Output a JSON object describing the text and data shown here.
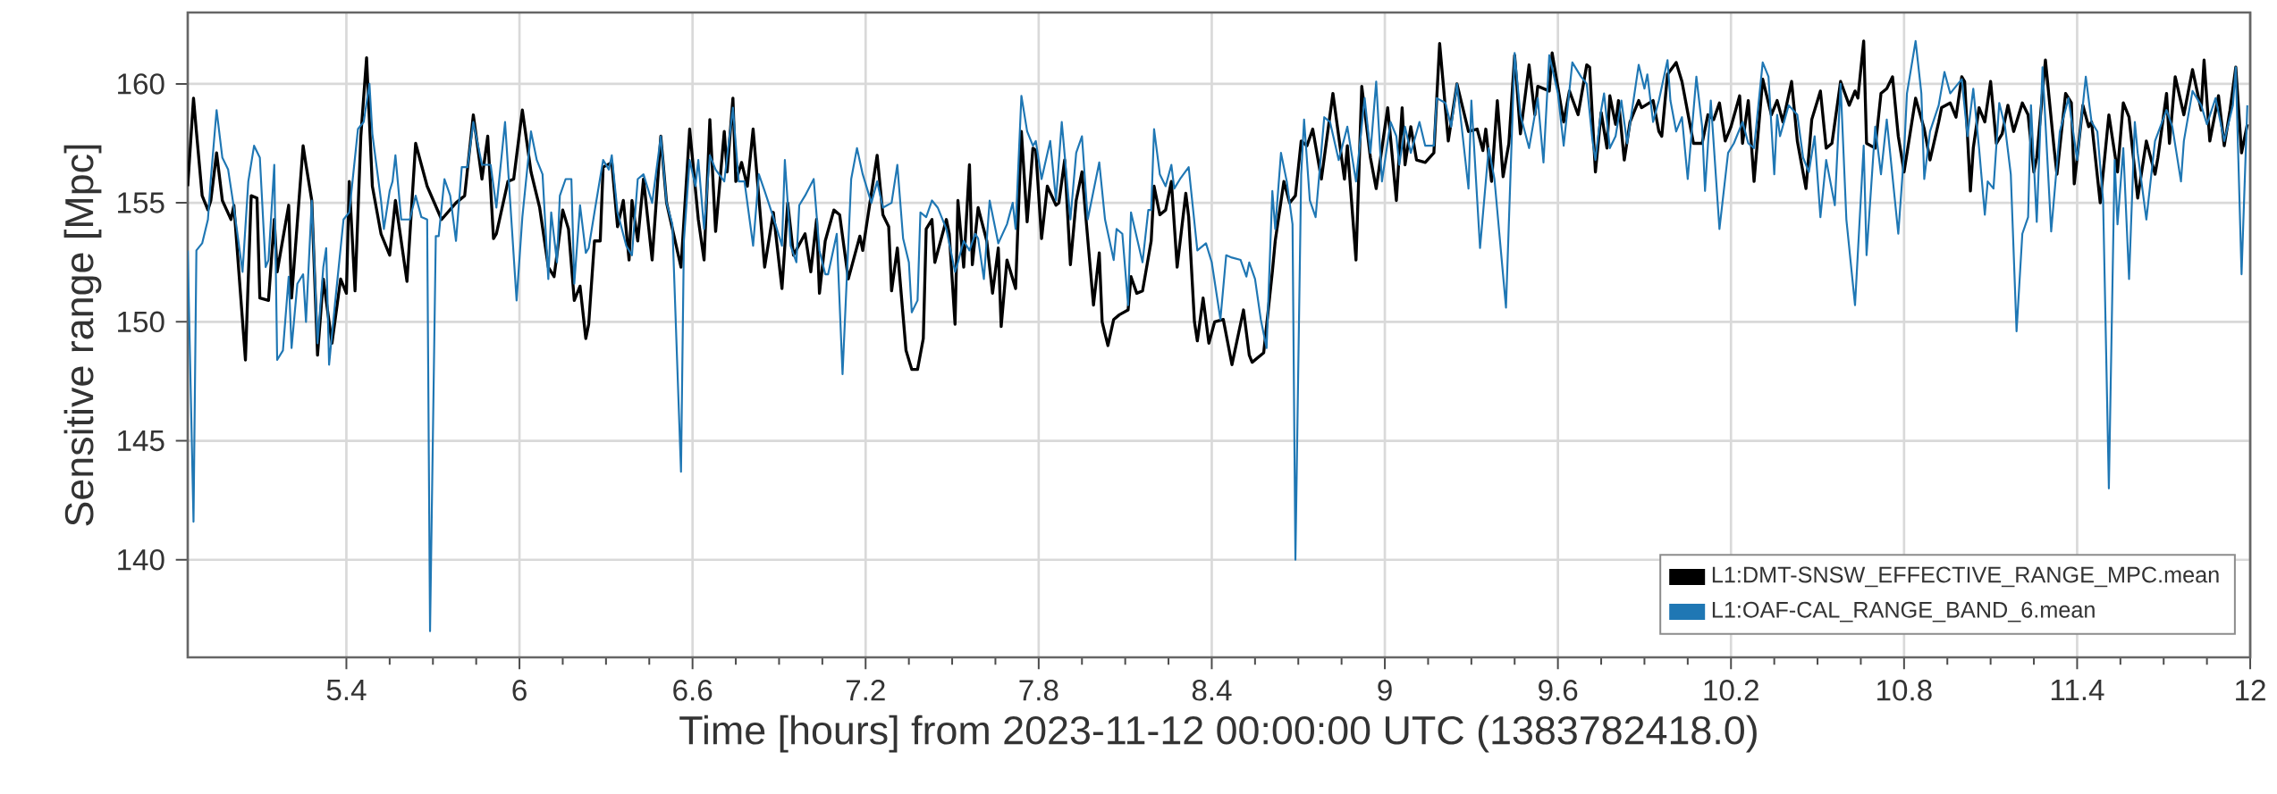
{
  "chart_data": {
    "type": "line",
    "xlabel": "Time [hours] from 2023-11-12 00:00:00 UTC (1383782418.0)",
    "ylabel": "Sensitive range [Mpc]",
    "xlim": [
      4.85,
      12.0
    ],
    "ylim": [
      135.9,
      163.0
    ],
    "xticks": [
      5.4,
      6,
      6.6,
      7.2,
      7.8,
      8.4,
      9,
      9.6,
      10.2,
      10.8,
      11.4,
      12
    ],
    "yticks": [
      140,
      145,
      150,
      155,
      160
    ],
    "grid": true,
    "legend": "bottom right",
    "series": [
      {
        "name": "L1:DMT-SNSW_EFFECTIVE_RANGE_MPC.mean",
        "color": "#000000",
        "x": [
          4.85,
          4.87,
          4.88,
          4.9,
          4.92,
          4.93,
          4.95,
          4.97,
          5.0,
          5.01,
          5.05,
          5.07,
          5.09,
          5.1,
          5.13,
          5.15,
          5.16,
          5.2,
          5.21,
          5.25,
          5.26,
          5.28,
          5.3,
          5.32,
          5.35,
          5.38,
          5.4,
          5.41,
          5.43,
          5.45,
          5.47,
          5.49,
          5.52,
          5.55,
          5.57,
          5.61,
          5.64,
          5.68,
          5.73,
          5.78,
          5.81,
          5.84,
          5.87,
          5.89,
          5.91,
          5.92,
          5.96,
          5.98,
          6.01,
          6.04,
          6.07,
          6.1,
          6.12,
          6.15,
          6.17,
          6.19,
          6.21,
          6.23,
          6.24,
          6.26,
          6.28,
          6.29,
          6.32,
          6.34,
          6.36,
          6.38,
          6.39,
          6.41,
          6.43,
          6.46,
          6.49,
          6.51,
          6.56,
          6.59,
          6.62,
          6.64,
          6.66,
          6.68,
          6.71,
          6.72,
          6.74,
          6.75,
          6.77,
          6.79,
          6.81,
          6.85,
          6.88,
          6.91,
          6.93,
          6.95,
          6.99,
          7.01,
          7.03,
          7.04,
          7.06,
          7.09,
          7.11,
          7.14,
          7.18,
          7.19,
          7.24,
          7.26,
          7.28,
          7.29,
          7.31,
          7.34,
          7.36,
          7.38,
          7.4,
          7.41,
          7.43,
          7.44,
          7.48,
          7.49,
          7.51,
          7.52,
          7.54,
          7.56,
          7.57,
          7.59,
          7.62,
          7.64,
          7.66,
          7.67,
          7.69,
          7.72,
          7.74,
          7.76,
          7.78,
          7.79,
          7.81,
          7.83,
          7.86,
          7.87,
          7.89,
          7.91,
          7.93,
          7.95,
          7.99,
          8.01,
          8.02,
          8.04,
          8.06,
          8.08,
          8.11,
          8.12,
          8.14,
          8.16,
          8.19,
          8.2,
          8.22,
          8.24,
          8.26,
          8.28,
          8.31,
          8.32,
          8.34,
          8.35,
          8.37,
          8.39,
          8.41,
          8.44,
          8.47,
          8.51,
          8.53,
          8.54,
          8.58,
          8.61,
          8.62,
          8.65,
          8.67,
          8.69,
          8.71,
          8.73,
          8.75,
          8.78,
          8.82,
          8.86,
          8.87,
          8.9,
          8.92,
          8.95,
          8.97,
          9.01,
          9.04,
          9.06,
          9.07,
          9.09,
          9.11,
          9.14,
          9.17,
          9.19,
          9.22,
          9.25,
          9.29,
          9.32,
          9.34,
          9.35,
          9.37,
          9.39,
          9.41,
          9.43,
          9.45,
          9.47,
          9.5,
          9.52,
          9.53,
          9.57,
          9.58,
          9.62,
          9.64,
          9.67,
          9.7,
          9.71,
          9.73,
          9.75,
          9.77,
          9.78,
          9.8,
          9.81,
          9.83,
          9.85,
          9.88,
          9.89,
          9.93,
          9.95,
          9.96,
          9.98,
          10.01,
          10.03,
          10.05,
          10.07,
          10.1,
          10.12,
          10.14,
          10.16,
          10.18,
          10.2,
          10.23,
          10.24,
          10.26,
          10.28,
          10.31,
          10.34,
          10.36,
          10.38,
          10.41,
          10.43,
          10.46,
          10.48,
          10.51,
          10.53,
          10.55,
          10.58,
          10.61,
          10.63,
          10.64,
          10.66,
          10.67,
          10.7,
          10.72,
          10.74,
          10.76,
          10.78,
          10.8,
          10.84,
          10.87,
          10.89,
          10.92,
          10.93,
          10.96,
          10.98,
          11.0,
          11.01,
          11.03,
          11.04,
          11.06,
          11.08,
          11.1,
          11.12,
          11.14,
          11.16,
          11.18,
          11.21,
          11.23,
          11.25,
          11.26,
          11.29,
          11.32,
          11.33,
          11.36,
          11.38,
          11.39,
          11.42,
          11.44,
          11.45,
          11.48,
          11.51,
          11.54,
          11.56,
          11.58,
          11.61,
          11.64,
          11.67,
          11.68,
          11.71,
          11.72,
          11.74,
          11.77,
          11.8,
          11.83,
          11.84,
          11.86,
          11.89,
          11.91,
          11.93,
          11.95,
          11.97,
          11.99
        ],
        "values": [
          155.7,
          159.4,
          158.0,
          155.3,
          154.7,
          155.1,
          157.1,
          155.1,
          154.3,
          154.9,
          148.4,
          155.3,
          155.2,
          151.0,
          150.9,
          154.3,
          152.1,
          154.9,
          151.0,
          157.4,
          156.6,
          155.1,
          148.6,
          151.8,
          149.1,
          151.8,
          151.2,
          155.9,
          151.3,
          157.8,
          161.1,
          155.7,
          153.7,
          152.8,
          155.1,
          151.7,
          157.5,
          155.7,
          154.3,
          155.0,
          155.3,
          158.7,
          156.0,
          157.8,
          153.5,
          153.7,
          155.9,
          156.0,
          158.9,
          156.3,
          154.8,
          152.3,
          151.9,
          154.7,
          153.9,
          150.9,
          151.5,
          149.3,
          149.9,
          153.4,
          153.4,
          156.5,
          156.7,
          154.0,
          155.1,
          152.6,
          155.1,
          153.4,
          156.0,
          152.6,
          157.8,
          155.0,
          152.3,
          158.1,
          154.3,
          152.6,
          158.5,
          153.8,
          158.0,
          156.3,
          159.4,
          155.9,
          156.7,
          155.7,
          158.1,
          152.3,
          154.6,
          151.4,
          155.0,
          152.8,
          153.7,
          152.1,
          154.3,
          151.2,
          153.4,
          154.7,
          154.5,
          151.8,
          153.6,
          153.0,
          157.0,
          154.5,
          154.0,
          151.3,
          153.1,
          148.8,
          148.0,
          148.0,
          149.3,
          153.9,
          154.3,
          152.5,
          154.3,
          153.7,
          149.9,
          155.1,
          152.3,
          156.6,
          152.4,
          154.8,
          153.4,
          151.2,
          153.1,
          149.8,
          152.6,
          151.4,
          158.0,
          154.2,
          157.3,
          157.2,
          153.5,
          155.7,
          154.9,
          155.0,
          156.8,
          152.4,
          155.1,
          156.3,
          150.7,
          152.9,
          150.0,
          149.0,
          150.1,
          150.3,
          150.5,
          151.9,
          151.2,
          151.3,
          153.4,
          155.7,
          154.5,
          154.7,
          155.9,
          152.3,
          155.4,
          154.4,
          150.0,
          149.2,
          151.0,
          149.1,
          150.0,
          150.1,
          148.2,
          150.5,
          148.6,
          148.3,
          148.7,
          152.1,
          153.4,
          155.9,
          155.0,
          155.3,
          157.6,
          157.4,
          158.1,
          156.0,
          159.6,
          156.0,
          157.4,
          152.6,
          159.9,
          156.9,
          155.6,
          159.0,
          155.1,
          159.0,
          156.6,
          158.2,
          156.8,
          156.7,
          157.1,
          161.7,
          157.6,
          160.0,
          158.0,
          158.1,
          157.2,
          158.1,
          155.9,
          159.3,
          156.1,
          157.5,
          161.2,
          157.9,
          160.8,
          158.7,
          159.9,
          159.7,
          161.3,
          158.4,
          159.7,
          158.7,
          160.8,
          160.7,
          156.3,
          158.8,
          157.3,
          159.5,
          158.3,
          159.3,
          156.8,
          158.4,
          159.3,
          159.0,
          159.3,
          158.0,
          157.8,
          160.4,
          160.9,
          160.1,
          158.8,
          157.5,
          157.5,
          158.7,
          158.5,
          159.2,
          157.6,
          158.2,
          159.5,
          157.5,
          159.3,
          155.9,
          160.2,
          158.7,
          159.3,
          158.4,
          160.1,
          157.6,
          155.6,
          158.5,
          159.7,
          157.3,
          157.5,
          160.1,
          159.1,
          159.7,
          159.4,
          161.8,
          157.5,
          157.3,
          159.6,
          159.8,
          160.3,
          157.8,
          156.3,
          159.4,
          158.1,
          156.8,
          158.4,
          159.0,
          159.2,
          158.6,
          160.3,
          160.1,
          155.5,
          157.3,
          159.0,
          158.4,
          160.1,
          157.5,
          157.9,
          159.1,
          158.0,
          159.2,
          158.7,
          156.3,
          156.9,
          161.0,
          157.3,
          156.2,
          159.6,
          159.2,
          155.8,
          159.1,
          158.2,
          158.4,
          155.0,
          158.7,
          156.3,
          159.2,
          158.6,
          155.2,
          157.6,
          156.2,
          156.9,
          159.6,
          157.5,
          160.3,
          158.7,
          160.6,
          158.9,
          161.0,
          157.6,
          159.5,
          157.4,
          158.9,
          160.7,
          157.1,
          158.3
        ]
      },
      {
        "name": "L1:OAF-CAL_RANGE_BAND_6.mean",
        "color": "#1f77b4",
        "x": [
          4.85,
          4.87,
          4.88,
          4.9,
          4.92,
          4.93,
          4.95,
          4.97,
          4.99,
          5.01,
          5.04,
          5.06,
          5.08,
          5.1,
          5.12,
          5.13,
          5.15,
          5.16,
          5.18,
          5.2,
          5.21,
          5.23,
          5.25,
          5.26,
          5.28,
          5.3,
          5.32,
          5.33,
          5.34,
          5.36,
          5.39,
          5.41,
          5.44,
          5.46,
          5.48,
          5.49,
          5.52,
          5.53,
          5.55,
          5.56,
          5.57,
          5.59,
          5.62,
          5.64,
          5.66,
          5.68,
          5.69,
          5.71,
          5.72,
          5.74,
          5.76,
          5.78,
          5.8,
          5.82,
          5.84,
          5.87,
          5.9,
          5.92,
          5.95,
          5.99,
          6.01,
          6.04,
          6.06,
          6.08,
          6.1,
          6.11,
          6.13,
          6.14,
          6.16,
          6.18,
          6.19,
          6.21,
          6.23,
          6.24,
          6.26,
          6.29,
          6.31,
          6.32,
          6.34,
          6.37,
          6.39,
          6.41,
          6.43,
          6.46,
          6.49,
          6.51,
          6.53,
          6.56,
          6.57,
          6.59,
          6.61,
          6.62,
          6.64,
          6.66,
          6.68,
          6.71,
          6.74,
          6.76,
          6.78,
          6.81,
          6.83,
          6.85,
          6.88,
          6.91,
          6.92,
          6.94,
          6.96,
          6.97,
          6.99,
          7.02,
          7.04,
          7.06,
          7.07,
          7.1,
          7.12,
          7.15,
          7.17,
          7.19,
          7.22,
          7.24,
          7.26,
          7.29,
          7.31,
          7.33,
          7.35,
          7.36,
          7.38,
          7.39,
          7.41,
          7.43,
          7.45,
          7.48,
          7.51,
          7.52,
          7.54,
          7.56,
          7.58,
          7.59,
          7.61,
          7.63,
          7.66,
          7.69,
          7.71,
          7.72,
          7.74,
          7.76,
          7.78,
          7.79,
          7.81,
          7.84,
          7.86,
          7.88,
          7.91,
          7.93,
          7.95,
          7.97,
          8.01,
          8.03,
          8.06,
          8.07,
          8.09,
          8.11,
          8.12,
          8.16,
          8.18,
          8.19,
          8.2,
          8.22,
          8.24,
          8.26,
          8.27,
          8.29,
          8.32,
          8.35,
          8.38,
          8.4,
          8.43,
          8.45,
          8.47,
          8.5,
          8.52,
          8.53,
          8.55,
          8.57,
          8.59,
          8.61,
          8.62,
          8.64,
          8.66,
          8.68,
          8.69,
          8.71,
          8.72,
          8.74,
          8.76,
          8.79,
          8.81,
          8.84,
          8.87,
          8.9,
          8.93,
          8.95,
          8.97,
          8.99,
          9.02,
          9.04,
          9.05,
          9.07,
          9.09,
          9.12,
          9.14,
          9.17,
          9.18,
          9.21,
          9.23,
          9.25,
          9.29,
          9.3,
          9.33,
          9.36,
          9.38,
          9.42,
          9.45,
          9.47,
          9.5,
          9.53,
          9.55,
          9.57,
          9.6,
          9.62,
          9.65,
          9.68,
          9.7,
          9.72,
          9.73,
          9.75,
          9.76,
          9.78,
          9.8,
          9.82,
          9.84,
          9.88,
          9.9,
          9.91,
          9.93,
          9.95,
          9.98,
          9.99,
          10.01,
          10.03,
          10.05,
          10.08,
          10.1,
          10.11,
          10.13,
          10.16,
          10.19,
          10.21,
          10.24,
          10.26,
          10.28,
          10.31,
          10.33,
          10.35,
          10.36,
          10.37,
          10.4,
          10.43,
          10.45,
          10.47,
          10.49,
          10.51,
          10.53,
          10.56,
          10.58,
          10.6,
          10.63,
          10.66,
          10.67,
          10.7,
          10.72,
          10.74,
          10.78,
          10.8,
          10.81,
          10.84,
          10.86,
          10.87,
          10.89,
          10.92,
          10.94,
          10.96,
          10.98,
          11.0,
          11.02,
          11.04,
          11.06,
          11.08,
          11.09,
          11.11,
          11.13,
          11.15,
          11.17,
          11.19,
          11.21,
          11.23,
          11.24,
          11.26,
          11.28,
          11.31,
          11.34,
          11.37,
          11.4,
          11.43,
          11.45,
          11.47,
          11.49,
          11.51,
          11.53,
          11.54,
          11.56,
          11.58,
          11.6,
          11.61,
          11.64,
          11.67,
          11.71,
          11.73,
          11.76,
          11.77,
          11.8,
          11.83,
          11.85,
          11.88,
          11.91,
          11.94,
          11.95,
          11.97,
          11.99
        ],
        "values": [
          153.0,
          141.6,
          153.0,
          153.3,
          154.3,
          156.0,
          158.9,
          156.9,
          156.4,
          154.8,
          152.1,
          155.9,
          157.4,
          156.9,
          152.3,
          152.6,
          156.6,
          148.4,
          148.8,
          151.9,
          148.9,
          151.6,
          152.0,
          150.0,
          155.1,
          149.1,
          152.3,
          153.1,
          148.2,
          150.7,
          154.3,
          154.6,
          158.1,
          158.4,
          160.0,
          157.9,
          155.1,
          153.9,
          155.5,
          155.9,
          157.0,
          154.3,
          154.3,
          155.3,
          154.4,
          154.3,
          137.0,
          153.6,
          153.6,
          156.0,
          155.3,
          153.4,
          156.5,
          156.5,
          158.4,
          156.6,
          156.6,
          154.8,
          158.4,
          150.9,
          154.4,
          158.0,
          156.8,
          156.2,
          151.8,
          154.6,
          152.5,
          155.3,
          156.0,
          156.0,
          151.6,
          154.9,
          152.9,
          153.1,
          154.6,
          156.8,
          156.4,
          157.0,
          154.6,
          153.2,
          152.8,
          156.0,
          156.2,
          155.0,
          157.8,
          155.0,
          154.1,
          143.7,
          153.4,
          156.8,
          155.7,
          156.8,
          153.9,
          157.0,
          156.4,
          155.9,
          159.0,
          155.9,
          155.9,
          153.2,
          156.2,
          155.5,
          154.4,
          153.2,
          156.8,
          153.2,
          152.5,
          154.9,
          155.3,
          156.0,
          153.0,
          152.0,
          152.0,
          153.7,
          147.8,
          156.0,
          157.3,
          156.2,
          155.0,
          155.9,
          154.8,
          155.0,
          156.6,
          153.5,
          152.5,
          150.4,
          150.9,
          154.6,
          154.4,
          155.1,
          154.8,
          153.9,
          152.1,
          152.5,
          153.4,
          153.0,
          153.7,
          153.5,
          151.8,
          155.1,
          153.3,
          154.1,
          155.0,
          153.9,
          159.5,
          158.0,
          157.4,
          157.6,
          156.0,
          157.6,
          155.1,
          158.4,
          154.3,
          157.1,
          157.8,
          154.3,
          156.7,
          154.3,
          152.6,
          153.9,
          153.7,
          150.7,
          154.6,
          152.5,
          154.7,
          154.7,
          158.1,
          156.2,
          155.7,
          156.6,
          155.6,
          156.0,
          156.5,
          153.0,
          153.3,
          152.5,
          150.1,
          152.8,
          152.7,
          152.6,
          151.9,
          152.5,
          151.8,
          150.1,
          148.9,
          155.5,
          153.9,
          157.1,
          155.9,
          154.1,
          140.0,
          156.2,
          158.5,
          155.1,
          154.4,
          158.6,
          158.4,
          156.8,
          158.2,
          155.9,
          159.4,
          157.1,
          160.1,
          155.9,
          158.4,
          157.8,
          156.6,
          158.2,
          157.1,
          158.4,
          157.4,
          157.4,
          159.4,
          159.2,
          158.2,
          160.0,
          155.6,
          159.3,
          153.1,
          157.3,
          156.0,
          150.6,
          161.3,
          158.7,
          157.3,
          159.4,
          156.7,
          161.2,
          159.6,
          157.4,
          160.9,
          160.3,
          160.0,
          157.6,
          156.8,
          158.9,
          159.6,
          157.3,
          157.8,
          159.3,
          157.5,
          160.8,
          159.8,
          160.4,
          158.4,
          159.3,
          161.0,
          159.3,
          158.0,
          158.6,
          156.0,
          160.3,
          158.2,
          155.5,
          159.3,
          153.9,
          157.1,
          157.5,
          158.4,
          157.5,
          157.3,
          160.9,
          160.3,
          156.2,
          158.7,
          157.8,
          159.1,
          158.7,
          156.9,
          156.3,
          157.8,
          154.4,
          156.8,
          154.9,
          160.0,
          154.3,
          150.7,
          157.4,
          152.8,
          158.2,
          156.2,
          158.5,
          153.7,
          157.1,
          159.6,
          161.8,
          159.6,
          156.0,
          158.0,
          159.1,
          160.5,
          159.6,
          159.9,
          160.2,
          157.8,
          159.8,
          157.3,
          154.5,
          155.9,
          155.6,
          159.2,
          158.2,
          156.2,
          149.6,
          153.7,
          154.4,
          159.1,
          154.2,
          160.7,
          153.8,
          158.0,
          159.4,
          156.8,
          160.3,
          158.4,
          158.0,
          155.1,
          143.0,
          156.8,
          154.1,
          157.3,
          151.8,
          158.4,
          157.1,
          154.3,
          157.6,
          158.9,
          158.2,
          155.9,
          157.6,
          159.7,
          159.1,
          158.3,
          159.4,
          157.6,
          159.1,
          160.7,
          152.0,
          159.1
        ]
      }
    ]
  }
}
